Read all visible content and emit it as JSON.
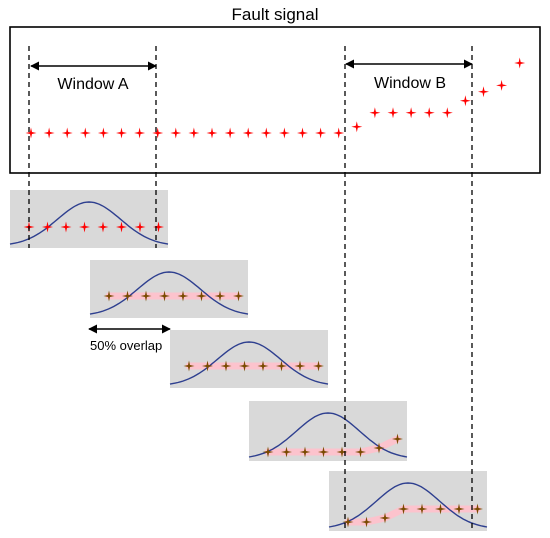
{
  "title": "Fault signal",
  "windows": [
    {
      "label": "Window A"
    },
    {
      "label": "Window B"
    }
  ],
  "overlap_label": "50% overlap",
  "colors": {
    "fault_marker": "#ff0000",
    "window_marker": "#7a4a00",
    "marker_halo": "#ffc0cb",
    "window_fill": "#d9d9d9",
    "gaussian_curve": "#2e3f8f",
    "frame": "#000000"
  },
  "fault_signal_levels": [
    0,
    0,
    0,
    0,
    0,
    0,
    0,
    0,
    0,
    0,
    0,
    0,
    0,
    0,
    0,
    0,
    0,
    0,
    0.09,
    0.29,
    0.29,
    0.29,
    0.29,
    0.29,
    0.46,
    0.59,
    0.68,
    1.0
  ],
  "segments": [
    {
      "level_range": [
        0,
        1
      ]
    },
    {
      "level_range": [
        0,
        1
      ]
    },
    {
      "level_range": [
        0,
        1
      ]
    },
    {
      "level_range": [
        0,
        1
      ]
    },
    {
      "level_range": [
        0,
        1
      ]
    }
  ]
}
